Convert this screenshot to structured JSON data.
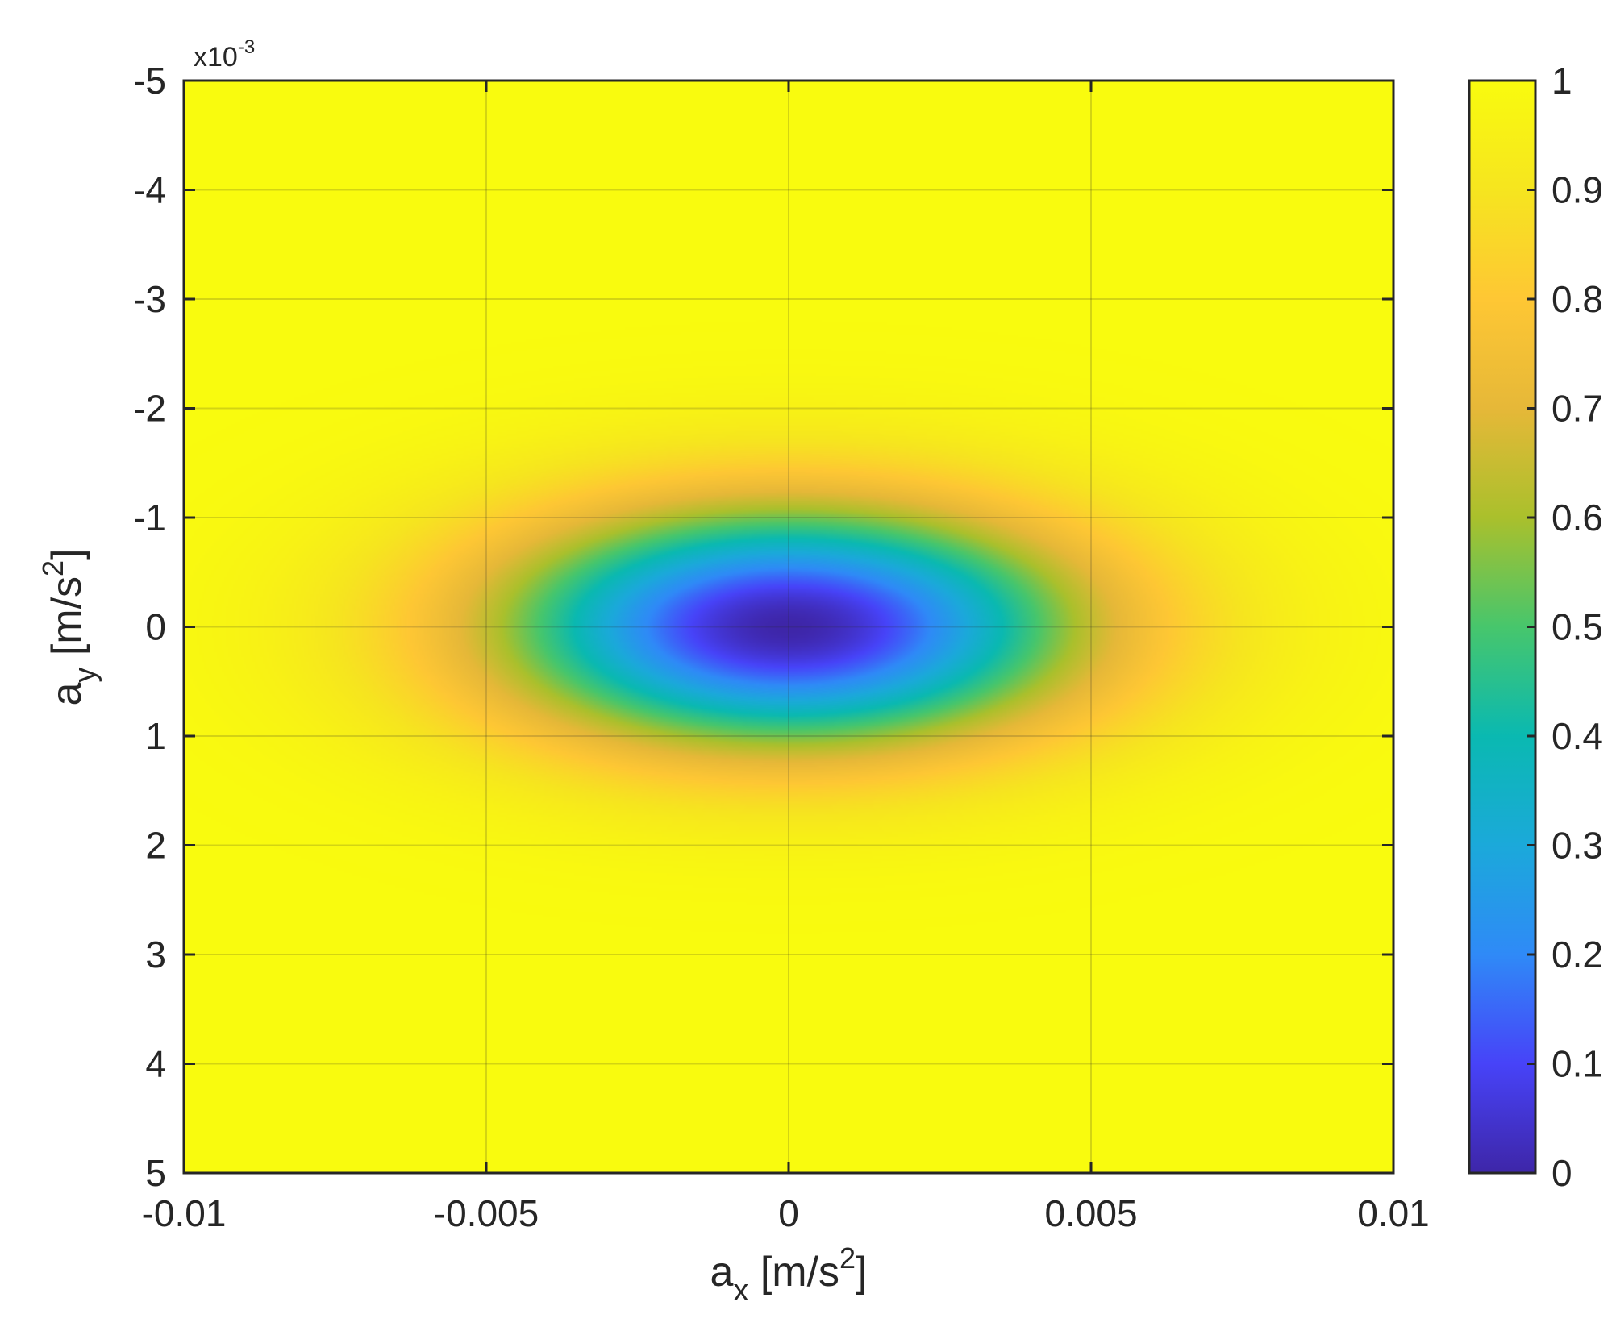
{
  "chart_data": {
    "type": "heatmap",
    "title": "",
    "xlabel": {
      "base": "a",
      "sub": "x",
      "unit_pre": " [m/s",
      "unit_sup": "2",
      "unit_post": "]"
    },
    "ylabel": {
      "base": "a",
      "sub": "y",
      "unit_pre": " [m/s",
      "unit_sup": "2",
      "unit_post": "]"
    },
    "xlim": [
      -0.01,
      0.01
    ],
    "ylim": [
      -0.005,
      0.005
    ],
    "y_reversed": true,
    "grid": true,
    "x_ticks": [
      -0.01,
      -0.005,
      0,
      0.005,
      0.01
    ],
    "x_tick_labels": [
      "-0.01",
      "-0.005",
      "0",
      "0.005",
      "0.01"
    ],
    "y_ticks": [
      -5,
      -4,
      -3,
      -2,
      -1,
      0,
      1,
      2,
      3,
      4,
      5
    ],
    "y_tick_labels": [
      "-5",
      "-4",
      "-3",
      "-2",
      "-1",
      "0",
      "1",
      "2",
      "3",
      "4",
      "5"
    ],
    "y_exponent": {
      "base": "x10",
      "power": "-3"
    },
    "field": {
      "description_kind": "inverted-gaussian",
      "center": [
        0,
        0
      ],
      "sigma_x": 0.0035,
      "sigma_y": 0.0008,
      "min_value": 0,
      "max_value": 1
    },
    "colorbar": {
      "position": "right",
      "range": [
        0,
        1
      ],
      "ticks": [
        0,
        0.1,
        0.2,
        0.3,
        0.4,
        0.5,
        0.6,
        0.7,
        0.8,
        0.9,
        1
      ],
      "tick_labels": [
        "0",
        "0.1",
        "0.2",
        "0.3",
        "0.4",
        "0.5",
        "0.6",
        "0.7",
        "0.8",
        "0.9",
        "1"
      ],
      "colormap": "parula",
      "colormap_stops": [
        "#3e26a8",
        "#4743f8",
        "#2f8af7",
        "#1ba9da",
        "#0ab9b1",
        "#47c66c",
        "#aac02c",
        "#e6b838",
        "#fec734",
        "#f6e51f",
        "#f9fb0e"
      ]
    }
  }
}
